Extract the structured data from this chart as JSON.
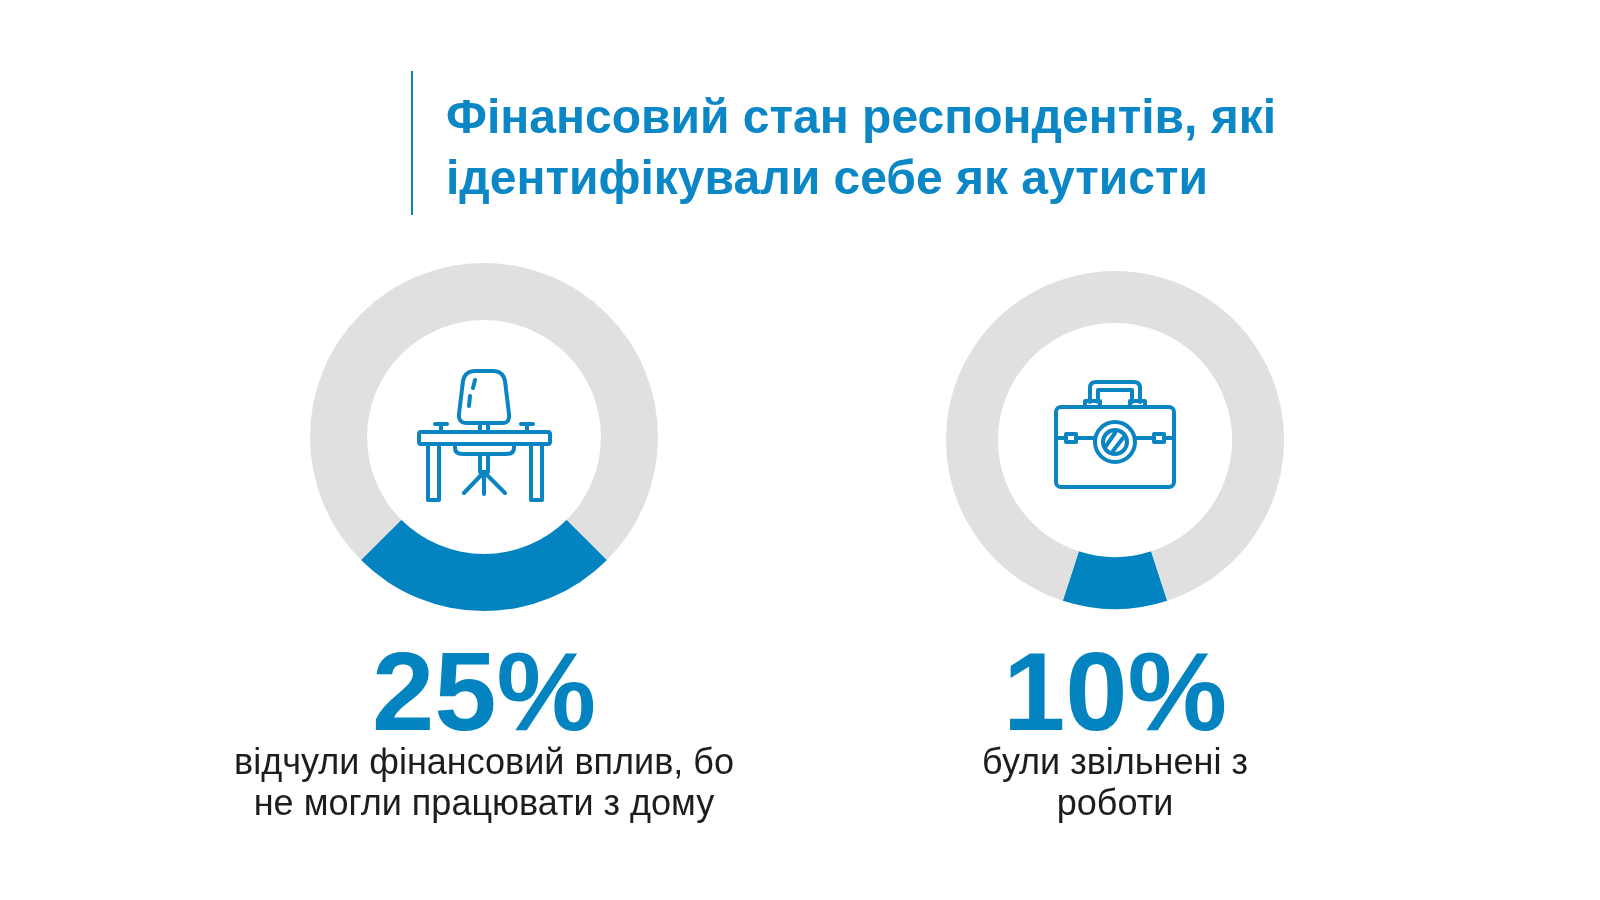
{
  "chart_data": [
    {
      "type": "donut",
      "title": "Фінансовий стан респондентів, які ідентифікували себе як аутисти",
      "categories": [
        "відчули фінансовий вплив, бо не могли працювати з дому",
        null
      ],
      "values": [
        25,
        75
      ],
      "colors": [
        "#0383c0",
        "#e0e0e0"
      ],
      "value_labels": [
        "25%",
        null
      ]
    },
    {
      "type": "donut",
      "categories": [
        "були звільнені з роботи",
        null
      ],
      "values": [
        10,
        90
      ],
      "colors": [
        "#0383c0",
        "#e0e0e0"
      ],
      "value_labels": [
        "10%",
        null
      ]
    }
  ]
}
